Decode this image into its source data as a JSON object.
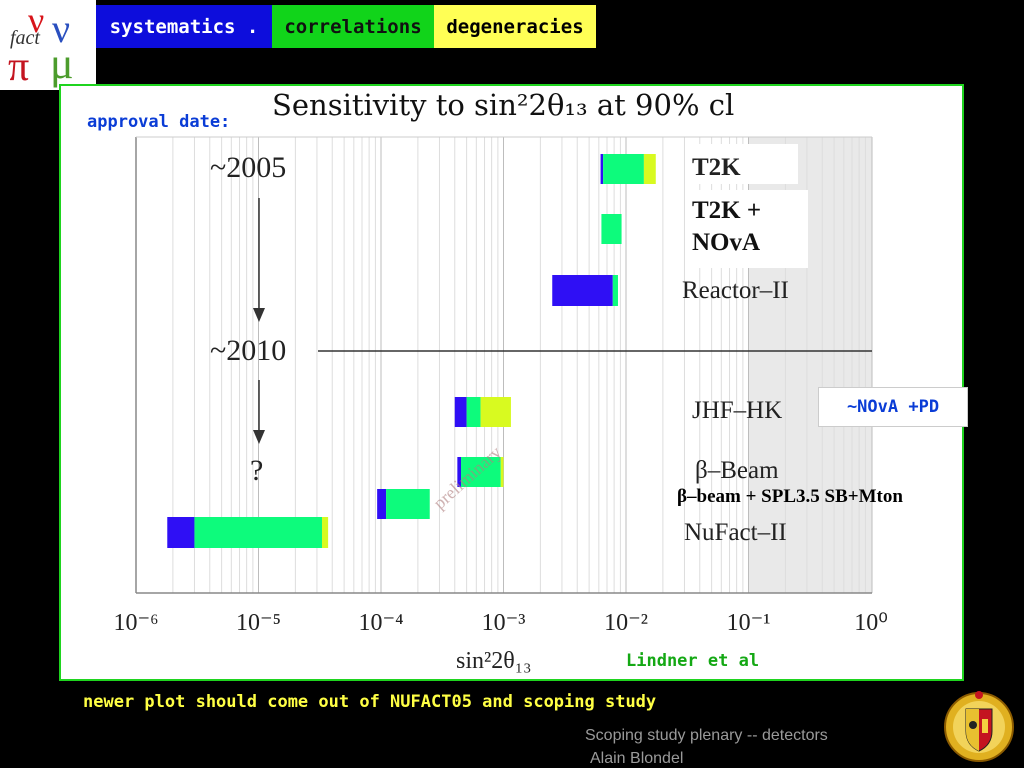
{
  "header": {
    "tabs": [
      {
        "label": "systematics .",
        "color": "#0d0ddc"
      },
      {
        "label": "correlations",
        "color": "#11d41a"
      },
      {
        "label": "degeneracies",
        "color": "#ffff55"
      }
    ]
  },
  "annotations": {
    "approval_date": "approval date:",
    "nova_pd": "~NOvA +PD",
    "beta_note": "β–beam + SPL3.5 SB+Mton",
    "credit": "Lindner et al",
    "newer_plot": "newer plot should come out of NUFACT05 and scoping study",
    "footer_line1": "Scoping study plenary -- detectors",
    "footer_line2": "Alain Blondel"
  },
  "chart_data": {
    "type": "bar",
    "orientation": "horizontal",
    "title": "Sensitivity to sin²2θ₁₃ at 90% cl",
    "xlabel": "sin²2θ₁₃",
    "xscale": "log",
    "xlim": [
      1e-06,
      1
    ],
    "x_ticks": [
      "10⁻⁶",
      "10⁻⁵",
      "10⁻⁴",
      "10⁻³",
      "10⁻²",
      "10⁻¹",
      "10⁰"
    ],
    "excluded_region_from": 0.1,
    "time_labels": [
      "~2005",
      "~2010",
      "?"
    ],
    "watermark": "preliminary",
    "segment_colors": {
      "blue": "#2f0ff5",
      "green": "#0dfb7c",
      "yellow": "#d8fa20"
    },
    "experiments": [
      {
        "name": "T2K",
        "bold": true,
        "segments": [
          {
            "from": 0.0062,
            "to": 0.0065,
            "color": "blue"
          },
          {
            "from": 0.0065,
            "to": 0.014,
            "color": "green"
          },
          {
            "from": 0.014,
            "to": 0.0175,
            "color": "yellow"
          }
        ]
      },
      {
        "name": "T2K + NOvA",
        "bold": true,
        "segments": [
          {
            "from": 0.0063,
            "to": 0.0092,
            "color": "green"
          }
        ]
      },
      {
        "name": "Reactor–II",
        "bold": false,
        "segments": [
          {
            "from": 0.0025,
            "to": 0.0078,
            "color": "blue"
          },
          {
            "from": 0.0078,
            "to": 0.0086,
            "color": "green"
          }
        ]
      },
      {
        "name": "JHF–HK",
        "bold": false,
        "segments": [
          {
            "from": 0.0004,
            "to": 0.0005,
            "color": "blue"
          },
          {
            "from": 0.0005,
            "to": 0.00065,
            "color": "green"
          },
          {
            "from": 0.00065,
            "to": 0.00115,
            "color": "yellow"
          }
        ]
      },
      {
        "name": "β–Beam",
        "bold": false,
        "segments": [
          {
            "from": 0.00042,
            "to": 0.00045,
            "color": "blue"
          },
          {
            "from": 0.00045,
            "to": 0.00095,
            "color": "green"
          },
          {
            "from": 0.00095,
            "to": 0.001,
            "color": "yellow"
          }
        ]
      },
      {
        "name": "NuFact–II",
        "bold": false,
        "segments": [
          {
            "from": 1.8e-06,
            "to": 3e-06,
            "color": "blue"
          },
          {
            "from": 3e-06,
            "to": 3.3e-05,
            "color": "green"
          },
          {
            "from": 3.3e-05,
            "to": 3.7e-05,
            "color": "yellow"
          }
        ]
      },
      {
        "name": "",
        "bold": false,
        "segments": [
          {
            "from": 9.3e-05,
            "to": 0.00011,
            "color": "blue"
          },
          {
            "from": 0.00011,
            "to": 0.00025,
            "color": "green"
          }
        ]
      }
    ]
  }
}
